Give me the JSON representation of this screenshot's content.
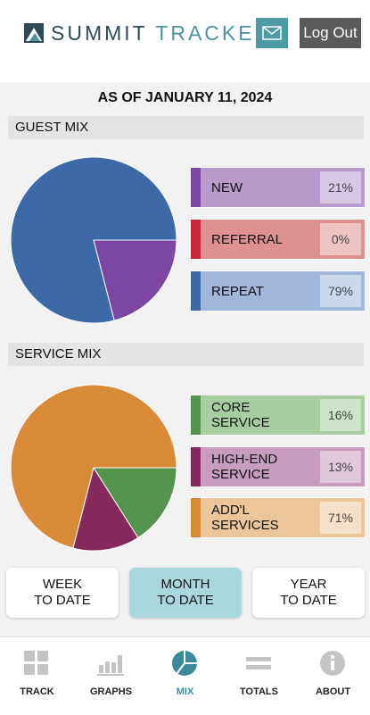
{
  "header": {
    "brand_word1": "SUMMIT",
    "brand_word2": "TRACKER",
    "logout_label": "Log Out",
    "colors": {
      "brand_dark": "#2f4a57",
      "brand_accent": "#4d93a0",
      "mail_button": "#4b9aa5",
      "logout_button": "#5a5a5a"
    }
  },
  "as_of": "AS OF JANUARY 11, 2024",
  "guest_mix": {
    "title": "GUEST MIX",
    "items": [
      {
        "label": "NEW",
        "percent": "21%",
        "value": 21,
        "color": "#7b46a4",
        "bg": "#b69bcc"
      },
      {
        "label": "REFERRAL",
        "percent": "0%",
        "value": 0,
        "color": "#c9283a",
        "bg": "#dd9191"
      },
      {
        "label": "REPEAT",
        "percent": "79%",
        "value": 79,
        "color": "#3e69a9",
        "bg": "#a0b7db"
      }
    ]
  },
  "service_mix": {
    "title": "SERVICE MIX",
    "items": [
      {
        "label": "CORE\nSERVICE",
        "percent": "16%",
        "value": 16,
        "color": "#54944f",
        "bg": "#a7ce9f"
      },
      {
        "label": "HIGH-END\nSERVICE",
        "percent": "13%",
        "value": 13,
        "color": "#86295d",
        "bg": "#c79cbd"
      },
      {
        "label": "ADD'L\n SERVICES",
        "percent": "71%",
        "value": 71,
        "color": "#d98a36",
        "bg": "#ecc59a"
      }
    ]
  },
  "ranges": [
    {
      "label": "WEEK\nTO DATE",
      "active": false
    },
    {
      "label": "MONTH\nTO DATE",
      "active": true
    },
    {
      "label": "YEAR\nTO DATE",
      "active": false
    }
  ],
  "nav": [
    {
      "label": "TRACK",
      "icon": "grid-icon",
      "active": false
    },
    {
      "label": "GRAPHS",
      "icon": "bar-chart-icon",
      "active": false
    },
    {
      "label": "MIX",
      "icon": "pie-chart-icon",
      "active": true
    },
    {
      "label": "TOTALS",
      "icon": "equals-icon",
      "active": false
    },
    {
      "label": "ABOUT",
      "icon": "info-icon",
      "active": false
    }
  ]
}
